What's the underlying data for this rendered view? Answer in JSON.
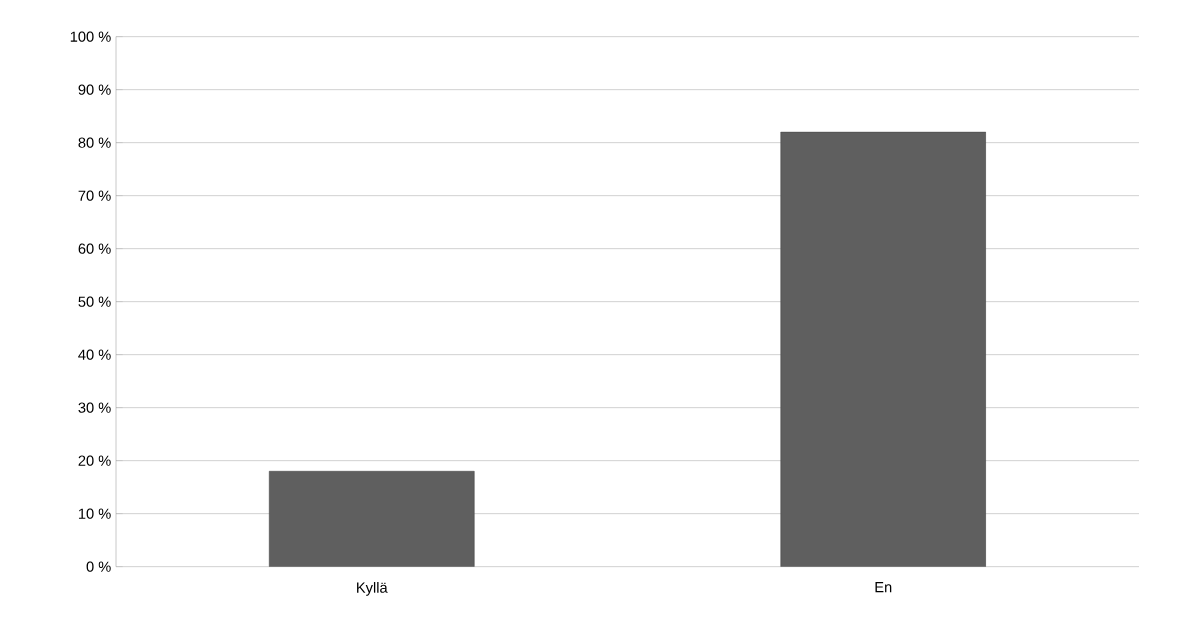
{
  "chart_data": {
    "type": "bar",
    "categories": [
      "Kyllä",
      "En"
    ],
    "values": [
      18,
      82
    ],
    "color": "#5f5f5f",
    "ylim": [
      0,
      100
    ],
    "yticks": [
      {
        "value": 0,
        "label": "0 %"
      },
      {
        "value": 10,
        "label": "10 %"
      },
      {
        "value": 20,
        "label": "20 %"
      },
      {
        "value": 30,
        "label": "30 %"
      },
      {
        "value": 40,
        "label": "40 %"
      },
      {
        "value": 50,
        "label": "50 %"
      },
      {
        "value": 60,
        "label": "60 %"
      },
      {
        "value": 70,
        "label": "70 %"
      },
      {
        "value": 80,
        "label": "80 %"
      },
      {
        "value": 90,
        "label": "90 %"
      },
      {
        "value": 100,
        "label": "100 %"
      }
    ],
    "grid": "y"
  }
}
